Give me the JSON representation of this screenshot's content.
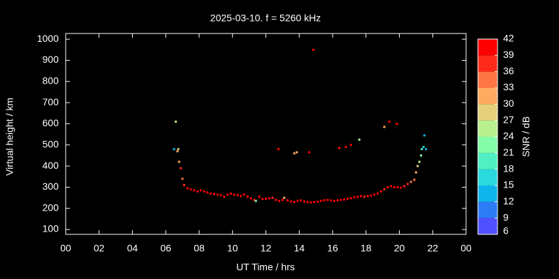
{
  "chart_data": {
    "type": "scatter",
    "title": "2025-03-10. f = 5260 kHz",
    "xlabel": "UT Time / hrs",
    "ylabel": "Virtual height / km",
    "xlim": [
      0,
      24
    ],
    "xticks": [
      {
        "value": 0,
        "label": "00"
      },
      {
        "value": 2,
        "label": "02"
      },
      {
        "value": 4,
        "label": "04"
      },
      {
        "value": 6,
        "label": "06"
      },
      {
        "value": 8,
        "label": "08"
      },
      10,
      12,
      14,
      16,
      18,
      20,
      22,
      {
        "value": 24,
        "label": "00"
      }
    ],
    "ylim": [
      77,
      1027
    ],
    "yticks": [
      100,
      200,
      300,
      400,
      500,
      600,
      700,
      800,
      900,
      1000
    ],
    "x": [
      6.5,
      6.6,
      6.7,
      6.75,
      6.8,
      6.9,
      7.0,
      7.1,
      7.3,
      7.5,
      7.7,
      7.9,
      8.1,
      8.3,
      8.5,
      8.7,
      8.9,
      9.1,
      9.3,
      9.5,
      9.7,
      9.9,
      10.1,
      10.3,
      10.5,
      10.7,
      10.9,
      11.1,
      11.3,
      11.4,
      11.6,
      11.8,
      12.0,
      12.2,
      12.4,
      12.6,
      12.8,
      13.0,
      13.1,
      13.3,
      13.5,
      13.7,
      13.9,
      14.1,
      14.3,
      14.5,
      14.7,
      14.9,
      15.1,
      15.3,
      15.5,
      15.7,
      15.9,
      16.1,
      16.3,
      16.5,
      16.7,
      16.9,
      17.1,
      17.3,
      17.5,
      17.7,
      17.9,
      18.1,
      18.3,
      18.5,
      18.7,
      18.9,
      19.1,
      19.3,
      19.5,
      19.7,
      19.9,
      20.1,
      20.3,
      20.5,
      20.7,
      20.9,
      21.0,
      21.1,
      21.2,
      21.3,
      21.35,
      21.45,
      21.6,
      21.5,
      12.75,
      13.7,
      13.85,
      14.6,
      14.85,
      16.4,
      16.8,
      17.1,
      17.6,
      19.1,
      19.4,
      19.85
    ],
    "values": [
      480,
      610,
      470,
      480,
      420,
      390,
      340,
      310,
      295,
      290,
      285,
      280,
      285,
      280,
      275,
      270,
      268,
      265,
      262,
      255,
      265,
      270,
      265,
      262,
      258,
      265,
      255,
      248,
      240,
      235,
      255,
      245,
      245,
      248,
      250,
      240,
      235,
      240,
      250,
      238,
      232,
      230,
      235,
      238,
      232,
      230,
      228,
      230,
      232,
      235,
      238,
      240,
      238,
      235,
      238,
      240,
      242,
      245,
      248,
      252,
      255,
      258,
      255,
      258,
      260,
      265,
      270,
      280,
      290,
      300,
      305,
      300,
      300,
      298,
      305,
      315,
      325,
      335,
      370,
      400,
      420,
      450,
      480,
      490,
      480,
      545,
      480,
      460,
      465,
      465,
      950,
      485,
      490,
      500,
      525,
      585,
      610,
      600
    ],
    "snr": [
      14,
      24,
      30,
      28,
      32,
      38,
      34,
      38,
      39,
      40,
      39,
      40,
      39,
      40,
      40,
      39,
      40,
      40,
      39,
      40,
      39,
      40,
      40,
      39,
      40,
      39,
      40,
      39,
      40,
      22,
      39,
      40,
      39,
      40,
      37,
      40,
      39,
      40,
      31,
      40,
      39,
      40,
      39,
      40,
      40,
      39,
      40,
      39,
      40,
      40,
      39,
      40,
      39,
      40,
      40,
      39,
      40,
      39,
      40,
      40,
      39,
      40,
      38,
      40,
      39,
      40,
      39,
      40,
      37,
      39,
      40,
      39,
      40,
      39,
      38,
      37,
      35,
      33,
      30,
      28,
      24,
      21,
      19,
      16,
      14,
      14,
      40,
      30,
      31,
      40,
      40,
      40,
      39,
      40,
      25,
      30,
      40,
      40
    ],
    "colorbar": {
      "label": "SNR / dB",
      "lim": [
        6,
        42
      ],
      "ticks": [
        6,
        9,
        12,
        15,
        18,
        21,
        24,
        27,
        30,
        33,
        36,
        39,
        42
      ],
      "colors": [
        "#8000ff",
        "#5050ff",
        "#2c7cf6",
        "#10b4ec",
        "#2ad9dc",
        "#50f0c4",
        "#84fca8",
        "#b8f090",
        "#e6d07a",
        "#ffaa60",
        "#ff7544",
        "#ff2a1a",
        "#ff0000"
      ]
    }
  }
}
